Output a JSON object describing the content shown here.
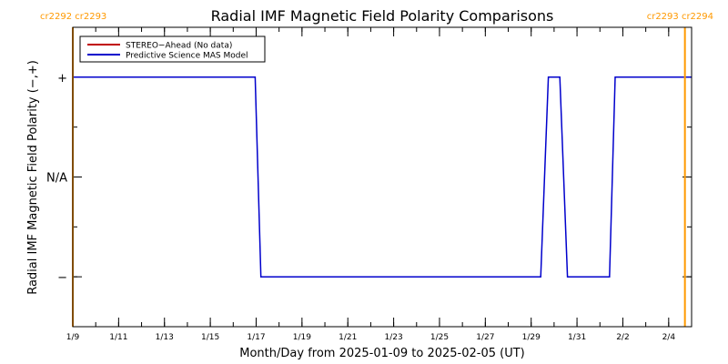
{
  "chart_data": {
    "type": "line",
    "title": "Radial IMF Magnetic Field Polarity Comparisons",
    "xlabel": "Month/Day from 2025-01-09 to 2025-02-05 (UT)",
    "ylabel": "Radial IMF Magnetic Field Polarity (−,+)",
    "x_start": "2025-01-09",
    "x_end": "2025-02-05",
    "xlim": [
      "2025-01-09 00:00",
      "2025-02-05 00:00"
    ],
    "ylim": [
      -1.5,
      1.5
    ],
    "x_tick_labels": [
      "1/9",
      "1/11",
      "1/13",
      "1/15",
      "1/17",
      "1/19",
      "1/21",
      "1/23",
      "1/25",
      "1/27",
      "1/29",
      "1/31",
      "2/2",
      "2/4"
    ],
    "x_ticks": [
      "2025-01-09",
      "2025-01-11",
      "2025-01-13",
      "2025-01-15",
      "2025-01-17",
      "2025-01-19",
      "2025-01-21",
      "2025-01-23",
      "2025-01-25",
      "2025-01-27",
      "2025-01-29",
      "2025-01-31",
      "2025-02-02",
      "2025-02-04"
    ],
    "y_ticks": [
      {
        "value": 1,
        "label": "+"
      },
      {
        "value": 0,
        "label": "N/A"
      },
      {
        "value": -1,
        "label": "−"
      }
    ],
    "legend": {
      "placement": "top-left",
      "entries": [
        {
          "label": "STEREO−Ahead (No data)",
          "color": "#c00000"
        },
        {
          "label": "Predictive Science MAS Model",
          "color": "#0000cc"
        }
      ]
    },
    "carrington": {
      "color": "#ff9900",
      "left_labels": [
        "cr2292",
        "cr2293"
      ],
      "right_labels": [
        "cr2293",
        "cr2294"
      ],
      "boundaries": [
        "2025-01-09 00:00",
        "2025-02-04 17:00"
      ]
    },
    "series": [
      {
        "name": "Predictive Science MAS Model",
        "color": "#0000cc",
        "points": [
          [
            "2025-01-09 00:00",
            1
          ],
          [
            "2025-01-16 23:00",
            1
          ],
          [
            "2025-01-17 05:00",
            -1
          ],
          [
            "2025-01-29 10:00",
            -1
          ],
          [
            "2025-01-29 18:00",
            1
          ],
          [
            "2025-01-30 06:00",
            1
          ],
          [
            "2025-01-30 14:00",
            -1
          ],
          [
            "2025-02-01 10:00",
            -1
          ],
          [
            "2025-02-01 16:00",
            1
          ],
          [
            "2025-02-05 00:00",
            1
          ]
        ]
      }
    ]
  }
}
